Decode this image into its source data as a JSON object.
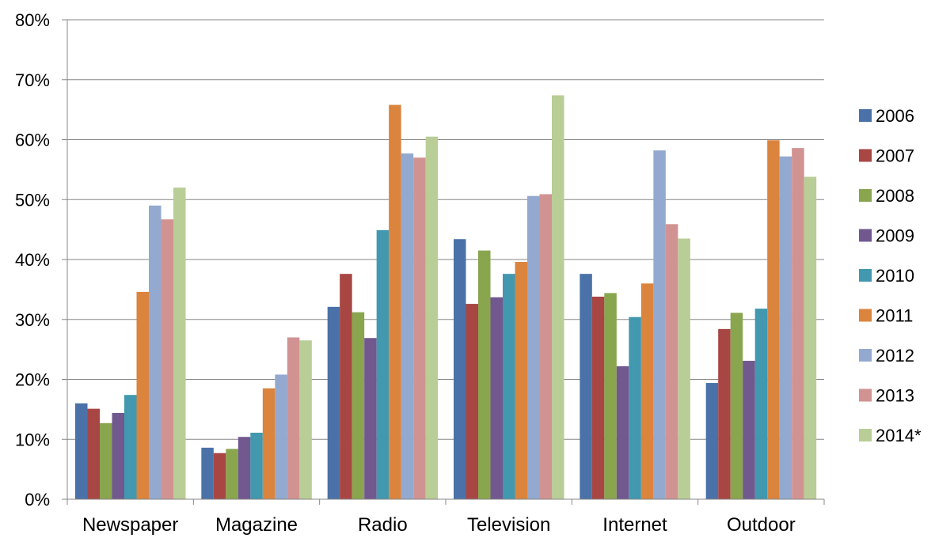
{
  "chart_data": {
    "type": "bar",
    "title": "",
    "xlabel": "",
    "ylabel": "",
    "ylim": [
      0,
      80
    ],
    "y_tick_suffix": "%",
    "y_ticks": [
      "0%",
      "10%",
      "20%",
      "30%",
      "40%",
      "50%",
      "60%",
      "70%",
      "80%"
    ],
    "grid": true,
    "legend_position": "right",
    "categories": [
      "Newspaper",
      "Magazine",
      "Radio",
      "Television",
      "Internet",
      "Outdoor"
    ],
    "series": [
      {
        "name": "2006",
        "color": "#4a72a8",
        "values": [
          16.0,
          8.6,
          32.1,
          43.4,
          37.6,
          19.4
        ]
      },
      {
        "name": "2007",
        "color": "#a84643",
        "values": [
          15.1,
          7.7,
          37.6,
          32.6,
          33.8,
          28.4
        ]
      },
      {
        "name": "2008",
        "color": "#89a54e",
        "values": [
          12.7,
          8.4,
          31.2,
          41.5,
          34.4,
          31.1
        ]
      },
      {
        "name": "2009",
        "color": "#71588f",
        "values": [
          14.4,
          10.4,
          26.9,
          33.7,
          22.2,
          23.1
        ]
      },
      {
        "name": "2010",
        "color": "#4198af",
        "values": [
          17.4,
          11.1,
          44.9,
          37.6,
          30.4,
          31.8
        ]
      },
      {
        "name": "2011",
        "color": "#db843d",
        "values": [
          34.6,
          18.5,
          65.8,
          39.6,
          36.0,
          59.9
        ]
      },
      {
        "name": "2012",
        "color": "#93a9cf",
        "values": [
          49.0,
          20.8,
          57.7,
          50.6,
          58.2,
          57.2
        ]
      },
      {
        "name": "2013",
        "color": "#d19392",
        "values": [
          46.7,
          27.0,
          57.0,
          50.9,
          45.9,
          58.6
        ]
      },
      {
        "name": "2014*",
        "color": "#b9cd96",
        "values": [
          52.0,
          26.5,
          60.5,
          67.4,
          43.5,
          53.8
        ]
      }
    ]
  }
}
